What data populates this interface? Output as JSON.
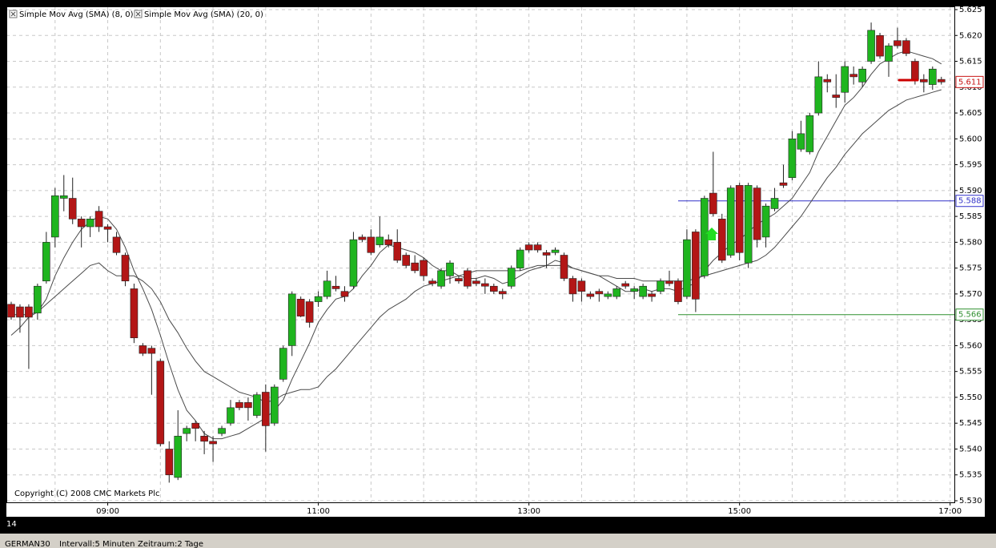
{
  "chart_data": {
    "type": "candlestick",
    "categories": [
      null,
      null,
      null,
      null,
      null,
      null,
      null,
      null,
      null,
      null,
      null,
      "09:00",
      null,
      null,
      null,
      null,
      null,
      null,
      null,
      null,
      null,
      null,
      null,
      null,
      null,
      null,
      null,
      null,
      null,
      null,
      null,
      null,
      null,
      null,
      null,
      "11:00",
      null,
      null,
      null,
      null,
      null,
      null,
      null,
      null,
      null,
      null,
      null,
      null,
      null,
      null,
      null,
      null,
      null,
      null,
      null,
      null,
      null,
      null,
      null,
      "13:00",
      null,
      null,
      null,
      null,
      null,
      null,
      null,
      null,
      null,
      null,
      null,
      null,
      null,
      null,
      null,
      null,
      null,
      null,
      null,
      null,
      null,
      null,
      null,
      "15:00",
      null,
      null,
      null,
      null,
      null,
      null,
      null,
      null,
      null,
      null,
      null,
      null,
      null,
      null,
      null,
      null,
      null,
      null,
      null,
      null,
      null,
      null,
      null,
      "17:00"
    ],
    "open": [
      5.568,
      5.5675,
      5.5675,
      5.5663,
      5.5725,
      5.581,
      5.5885,
      5.5885,
      5.5845,
      5.583,
      5.586,
      5.583,
      5.581,
      5.5775,
      5.571,
      5.56,
      5.5595,
      5.557,
      5.54,
      5.5345,
      5.543,
      5.545,
      5.5425,
      5.5415,
      5.543,
      5.545,
      5.549,
      5.549,
      5.5465,
      5.551,
      5.545,
      5.5535,
      5.56,
      5.569,
      5.5685,
      5.5685,
      5.5695,
      5.5715,
      5.5705,
      5.5715,
      5.581,
      5.581,
      5.5795,
      5.5805,
      5.58,
      5.5775,
      5.576,
      5.5765,
      5.5725,
      5.5715,
      5.5735,
      5.573,
      5.5745,
      5.5725,
      5.572,
      5.5715,
      5.5705,
      5.5715,
      5.575,
      5.5795,
      5.5795,
      5.578,
      5.578,
      5.5775,
      5.573,
      5.5725,
      5.57,
      5.5705,
      5.5695,
      5.5695,
      5.572,
      5.5705,
      5.5695,
      5.57,
      5.5705,
      5.5725,
      5.5725,
      5.5695,
      5.582,
      5.5735,
      5.5895,
      5.5845,
      5.5775,
      5.591,
      5.576,
      5.5905,
      5.581,
      5.5865,
      5.5915,
      5.5925,
      5.598,
      5.5975,
      5.605,
      5.6115,
      5.6085,
      5.609,
      5.6125,
      5.611,
      5.615,
      5.62,
      5.615,
      5.619,
      5.619,
      5.615,
      5.6115,
      5.6105,
      5.6115,
      null
    ],
    "high": [
      5.5685,
      5.568,
      5.568,
      5.572,
      5.582,
      5.5905,
      5.593,
      5.5925,
      5.585,
      5.585,
      5.587,
      5.5835,
      5.582,
      5.578,
      5.572,
      5.5605,
      5.56,
      5.5575,
      5.5415,
      5.5475,
      5.5445,
      5.5455,
      5.5435,
      5.5425,
      5.5445,
      5.5495,
      5.5495,
      5.55,
      5.551,
      5.5525,
      5.5525,
      5.56,
      5.5705,
      5.5695,
      5.569,
      5.5705,
      5.5745,
      5.5735,
      5.5715,
      5.582,
      5.5815,
      5.5825,
      5.585,
      5.5815,
      5.5825,
      5.578,
      5.5775,
      5.577,
      5.573,
      5.575,
      5.5765,
      5.5735,
      5.575,
      5.573,
      5.573,
      5.572,
      5.571,
      5.5755,
      5.579,
      5.58,
      5.58,
      5.5785,
      5.579,
      5.578,
      5.5735,
      5.573,
      5.5705,
      5.571,
      5.5705,
      5.5715,
      5.5725,
      5.5715,
      5.572,
      5.5705,
      5.573,
      5.5745,
      5.573,
      5.5825,
      5.5825,
      5.589,
      5.5975,
      5.5855,
      5.591,
      5.5915,
      5.5915,
      5.591,
      5.5875,
      5.5905,
      5.595,
      5.6015,
      5.6035,
      5.605,
      5.615,
      5.6125,
      5.6125,
      5.615,
      5.614,
      5.614,
      5.6225,
      5.6205,
      5.6185,
      5.6215,
      5.6195,
      5.6155,
      5.6125,
      5.614,
      5.612,
      null
    ],
    "low": [
      5.565,
      5.5625,
      5.5555,
      5.565,
      5.572,
      5.579,
      5.586,
      5.5835,
      5.579,
      5.581,
      5.582,
      5.58,
      5.5775,
      5.5715,
      5.5605,
      5.558,
      5.5505,
      5.5405,
      5.5335,
      5.534,
      5.5415,
      5.5415,
      5.539,
      5.5375,
      5.5425,
      5.5445,
      5.5475,
      5.5455,
      5.546,
      5.5395,
      5.5445,
      5.553,
      5.558,
      5.5655,
      5.5635,
      5.5675,
      5.569,
      5.5705,
      5.5685,
      5.571,
      5.58,
      5.5775,
      5.579,
      5.579,
      5.576,
      5.575,
      5.574,
      5.5725,
      5.5715,
      5.571,
      5.572,
      5.572,
      5.571,
      5.5715,
      5.57,
      5.57,
      5.569,
      5.571,
      5.5745,
      5.578,
      5.578,
      5.575,
      5.5775,
      5.5725,
      5.5685,
      5.5685,
      5.569,
      5.5685,
      5.569,
      5.569,
      5.571,
      5.569,
      5.569,
      5.5685,
      5.57,
      5.5715,
      5.568,
      5.569,
      5.5665,
      5.573,
      5.585,
      5.576,
      5.577,
      5.5765,
      5.575,
      5.579,
      5.579,
      5.586,
      5.5905,
      5.592,
      5.5975,
      5.597,
      5.6045,
      5.609,
      5.606,
      5.607,
      5.6105,
      5.61,
      5.6145,
      5.6155,
      5.612,
      5.6175,
      5.616,
      5.6105,
      5.609,
      5.6095,
      5.6105,
      null
    ],
    "close": [
      5.5655,
      5.5655,
      5.5655,
      5.5715,
      5.58,
      5.589,
      5.589,
      5.5845,
      5.583,
      5.5845,
      5.583,
      5.5825,
      5.578,
      5.5725,
      5.5615,
      5.5585,
      5.5585,
      5.541,
      5.535,
      5.5425,
      5.544,
      5.544,
      5.5415,
      5.541,
      5.544,
      5.548,
      5.548,
      5.548,
      5.5505,
      5.5445,
      5.552,
      5.5595,
      5.57,
      5.5657,
      5.5645,
      5.5695,
      5.5725,
      5.571,
      5.5695,
      5.5805,
      5.5805,
      5.578,
      5.581,
      5.5795,
      5.5765,
      5.5755,
      5.5745,
      5.5735,
      5.572,
      5.5745,
      5.576,
      5.5725,
      5.5715,
      5.572,
      5.5715,
      5.5705,
      5.57,
      5.575,
      5.5785,
      5.5785,
      5.5785,
      5.5775,
      5.5785,
      5.573,
      5.57,
      5.5705,
      5.5695,
      5.57,
      5.57,
      5.571,
      5.5715,
      5.571,
      5.5715,
      5.5695,
      5.5725,
      5.572,
      5.5685,
      5.5805,
      5.569,
      5.5885,
      5.5855,
      5.5765,
      5.5905,
      5.578,
      5.591,
      5.5805,
      5.587,
      5.5885,
      5.591,
      5.6,
      5.601,
      5.6045,
      5.612,
      5.611,
      5.608,
      5.614,
      5.612,
      5.6135,
      5.621,
      5.616,
      5.618,
      5.618,
      5.6165,
      5.6115,
      5.611,
      5.6135,
      5.611,
      null
    ],
    "up_color": "#1fb51f",
    "down_color": "#b31616",
    "series": [
      {
        "name": "Simple Mov Avg (SMA) (8, 0)",
        "color": "#4a4a4a",
        "values": [
          5.566,
          5.566,
          5.566,
          5.5665,
          5.569,
          5.5735,
          5.577,
          5.58,
          5.5825,
          5.584,
          5.585,
          5.5845,
          5.5825,
          5.579,
          5.5745,
          5.571,
          5.567,
          5.562,
          5.5565,
          5.5515,
          5.5475,
          5.5455,
          5.543,
          5.542,
          5.542,
          5.5425,
          5.543,
          5.544,
          5.545,
          5.546,
          5.5475,
          5.5495,
          5.5535,
          5.557,
          5.5605,
          5.5645,
          5.567,
          5.569,
          5.5695,
          5.571,
          5.5735,
          5.5755,
          5.578,
          5.5795,
          5.579,
          5.5785,
          5.578,
          5.577,
          5.5755,
          5.5745,
          5.5745,
          5.5735,
          5.573,
          5.573,
          5.5735,
          5.573,
          5.572,
          5.5725,
          5.5735,
          5.5745,
          5.575,
          5.5755,
          5.5765,
          5.576,
          5.575,
          5.5745,
          5.574,
          5.5735,
          5.5725,
          5.5715,
          5.5705,
          5.5705,
          5.571,
          5.5705,
          5.571,
          5.571,
          5.5705,
          5.5715,
          5.572,
          5.5745,
          5.5765,
          5.578,
          5.5795,
          5.5805,
          5.582,
          5.5835,
          5.5845,
          5.5855,
          5.587,
          5.5885,
          5.591,
          5.5935,
          5.5975,
          5.6005,
          5.6035,
          5.6065,
          5.608,
          5.61,
          5.6125,
          5.6145,
          5.6155,
          5.6165,
          5.617,
          5.6165,
          5.616,
          5.6155,
          5.6145,
          null
        ]
      },
      {
        "name": "Simple Mov Avg (SMA) (20, 0)",
        "color": "#4a4a4a",
        "values": [
          5.562,
          5.5635,
          5.5655,
          5.5665,
          5.568,
          5.5695,
          5.571,
          5.5725,
          5.574,
          5.5755,
          5.576,
          5.5745,
          5.5735,
          5.5735,
          5.5735,
          5.5725,
          5.571,
          5.5685,
          5.565,
          5.5625,
          5.5595,
          5.557,
          5.555,
          5.554,
          5.553,
          5.552,
          5.551,
          5.5505,
          5.55,
          5.549,
          5.5495,
          5.5505,
          5.551,
          5.5515,
          5.5515,
          5.552,
          5.554,
          5.5555,
          5.5575,
          5.5595,
          5.5615,
          5.5635,
          5.5655,
          5.567,
          5.568,
          5.569,
          5.5705,
          5.5715,
          5.572,
          5.5725,
          5.573,
          5.5735,
          5.574,
          5.5745,
          5.5745,
          5.5745,
          5.5745,
          5.5745,
          5.5745,
          5.575,
          5.5755,
          5.5755,
          5.5755,
          5.5755,
          5.575,
          5.5745,
          5.574,
          5.5735,
          5.5735,
          5.573,
          5.573,
          5.573,
          5.5725,
          5.5725,
          5.5725,
          5.5725,
          5.5725,
          5.5725,
          5.573,
          5.5735,
          5.574,
          5.5745,
          5.575,
          5.5755,
          5.576,
          5.5765,
          5.5775,
          5.579,
          5.581,
          5.583,
          5.585,
          5.5875,
          5.59,
          5.5925,
          5.5945,
          5.597,
          5.599,
          5.601,
          5.6025,
          5.604,
          5.6055,
          5.6065,
          5.6075,
          5.608,
          5.6085,
          5.609,
          5.6095,
          null
        ]
      }
    ],
    "ylim": [
      5.53,
      5.625
    ],
    "yticks": [
      {
        "value": 5.53,
        "label": "5.530"
      },
      5.535,
      {
        "value": 5.54,
        "label": "5.540"
      },
      5.545,
      {
        "value": 5.55,
        "label": "5.550"
      },
      5.555,
      {
        "value": 5.56,
        "label": "5.560"
      },
      5.565,
      {
        "value": 5.57,
        "label": "5.570"
      },
      5.575,
      {
        "value": 5.58,
        "label": "5.580"
      },
      5.585,
      {
        "value": 5.59,
        "label": "5.590"
      },
      5.595,
      {
        "value": 5.6,
        "label": "5.600"
      },
      5.605,
      {
        "value": 5.61,
        "label": "5.610"
      },
      5.615,
      {
        "value": 5.62,
        "label": "5.620"
      },
      5.625
    ],
    "grid": true,
    "levels": [
      {
        "value": 5.588,
        "color": "#3030c8"
      },
      {
        "value": 5.566,
        "color": "#2f8f2f"
      }
    ],
    "last_price": {
      "value": 5.611,
      "color": "#c81414"
    },
    "date_label": "14",
    "copyright": "Copyright (C) 2008 CMC Markets Plc"
  },
  "footer": {
    "instrument": "GERMAN30",
    "interval": "Intervall:5 Minuten",
    "period": "Zeitraum:2 Tage"
  }
}
